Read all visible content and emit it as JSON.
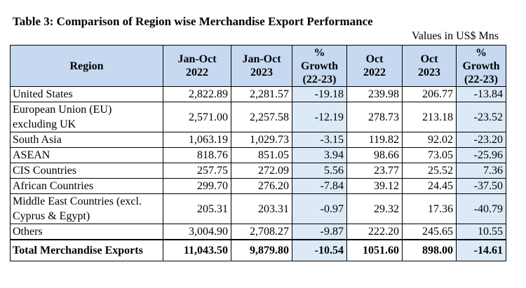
{
  "title": "Table 3: Comparison of Region wise Merchandise Export Performance",
  "units": "Values in US$ Mns",
  "headers": {
    "region": "Region",
    "jan_oct_2022": [
      "Jan-Oct",
      "2022"
    ],
    "jan_oct_2023": [
      "Jan-Oct",
      "2023"
    ],
    "growth_1": [
      "%",
      "Growth",
      "(22-23)"
    ],
    "oct_2022": [
      "Oct",
      "2022"
    ],
    "oct_2023": [
      "Oct",
      "2023"
    ],
    "growth_2": [
      "%",
      "Growth",
      "(22-23)"
    ]
  },
  "rows": [
    {
      "region": [
        "United States"
      ],
      "jo22": "2,822.89",
      "jo23": "2,281.57",
      "g1": "-19.18",
      "o22": "239.98",
      "o23": "206.77",
      "g2": "-13.84"
    },
    {
      "region": [
        "European Union (EU)",
        "excluding UK"
      ],
      "jo22": "2,571.00",
      "jo23": "2,257.58",
      "g1": "-12.19",
      "o22": "278.73",
      "o23": "213.18",
      "g2": "-23.52"
    },
    {
      "region": [
        "South Asia"
      ],
      "jo22": "1,063.19",
      "jo23": "1,029.73",
      "g1": "-3.15",
      "o22": "119.82",
      "o23": "92.02",
      "g2": "-23.20"
    },
    {
      "region": [
        "ASEAN"
      ],
      "jo22": "818.76",
      "jo23": "851.05",
      "g1": "3.94",
      "o22": "98.66",
      "o23": "73.05",
      "g2": "-25.96"
    },
    {
      "region": [
        "CIS Countries"
      ],
      "jo22": "257.75",
      "jo23": "272.09",
      "g1": "5.56",
      "o22": "23.77",
      "o23": "25.52",
      "g2": "7.36"
    },
    {
      "region": [
        "African Countries"
      ],
      "jo22": "299.70",
      "jo23": "276.20",
      "g1": "-7.84",
      "o22": "39.12",
      "o23": "24.45",
      "g2": "-37.50"
    },
    {
      "region": [
        "Middle East Countries (excl.",
        "Cyprus & Egypt)"
      ],
      "jo22": "205.31",
      "jo23": "203.31",
      "g1": "-0.97",
      "o22": "29.32",
      "o23": "17.36",
      "g2": "-40.79"
    },
    {
      "region": [
        "Others"
      ],
      "jo22": "3,004.90",
      "jo23": "2,708.27",
      "g1": "-9.87",
      "o22": "222.20",
      "o23": "245.65",
      "g2": "10.55"
    }
  ],
  "total": {
    "region": "Total Merchandise Exports",
    "jo22": "11,043.50",
    "jo23": "9,879.80",
    "g1": "-10.54",
    "o22": "1051.60",
    "o23": "898.00",
    "g2": "-14.61"
  },
  "colors": {
    "header_bg": "#c6d9f0",
    "growth_bg": "#dce9f6"
  }
}
